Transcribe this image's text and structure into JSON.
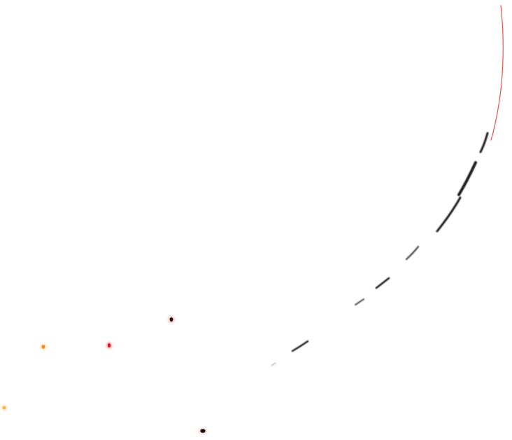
{
  "scene": {
    "background": "#ffffff",
    "arc_colors": {
      "dark": "#1a1a1a",
      "mid": "#4d4d4d",
      "red": "#e8322a"
    },
    "spot_colors": {
      "black": "#111111",
      "red": "#d9141e",
      "orange": "#f28c28",
      "light_orange": "#f7b24a",
      "halo_red": "#ff5a4a",
      "halo_orange": "#ffc07a"
    }
  }
}
